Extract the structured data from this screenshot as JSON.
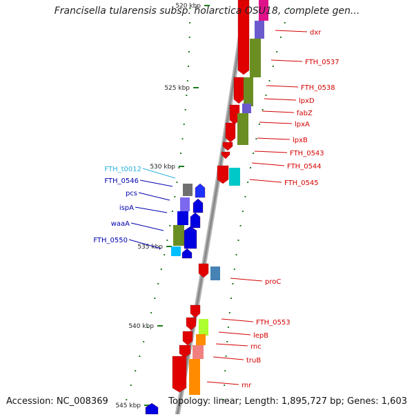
{
  "title": "Francisella tularensis subsp. holarctica OSU18, complete gen...",
  "footer": {
    "accession": "Accession: NC_008369",
    "topology": "Topology: linear; Length: 1,895,727 bp; Genes: 1,603"
  },
  "colors": {
    "backbone": "#8a8a8a",
    "tick": "#1a7a1a",
    "label_red": "#d40000",
    "label_blue": "#0000b0",
    "label_cyan": "#2ab0e0"
  },
  "ticks": [
    {
      "label": "520 kbp"
    },
    {
      "label": "525 kbp"
    },
    {
      "label": "530 kbp"
    },
    {
      "label": "535 kbp"
    },
    {
      "label": "540 kbp"
    },
    {
      "label": "545 kbp"
    }
  ],
  "labels_right": [
    "dxr",
    "FTH_0537",
    "FTH_0538",
    "lpxD",
    "fabZ",
    "lpxA",
    "lpxB",
    "FTH_0543",
    "FTH_0544",
    "FTH_0545",
    "proC",
    "FTH_0553",
    "lepB",
    "rnc",
    "truB",
    "rnr"
  ],
  "labels_left": [
    "FTH_t0012",
    "FTH_0546",
    "pcs",
    "ispA",
    "waaA",
    "FTH_0550"
  ]
}
